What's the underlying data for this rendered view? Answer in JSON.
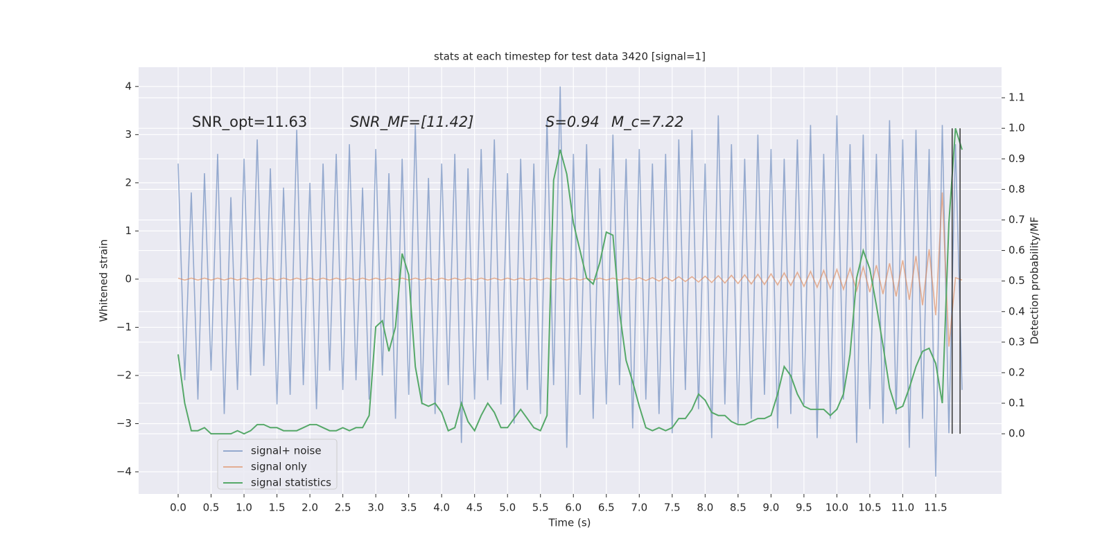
{
  "chart_data": {
    "type": "line",
    "title": "stats at each timestep for test data 3420 [signal=1]",
    "xlabel": "Time (s)",
    "ylabel": "Whitened strain",
    "y2label": "Detection probability/MF",
    "annotations": [
      "SNR_opt=11.63",
      "SNR_MF=[11.42]",
      "S=0.94",
      "M_c=7.22"
    ],
    "grid": true,
    "legend": "lower left",
    "xlim": [
      -0.6,
      12.5
    ],
    "ylim": [
      -4.46,
      4.4
    ],
    "y2lim": [
      -0.197,
      1.2
    ],
    "xticks": [
      {
        "value": 0,
        "label": "0.0"
      },
      0.5,
      {
        "value": 1,
        "label": "1.0"
      },
      1.5,
      {
        "value": 2,
        "label": "2.0"
      },
      2.5,
      {
        "value": 3,
        "label": "3.0"
      },
      3.5,
      {
        "value": 4,
        "label": "4.0"
      },
      4.5,
      {
        "value": 5,
        "label": "5.0"
      },
      5.5,
      {
        "value": 6,
        "label": "6.0"
      },
      6.5,
      {
        "value": 7,
        "label": "7.0"
      },
      7.5,
      {
        "value": 8,
        "label": "8.0"
      },
      8.5,
      {
        "value": 9,
        "label": "9.0"
      },
      9.5,
      {
        "value": 10,
        "label": "10.0"
      },
      10.5,
      {
        "value": 11,
        "label": "11.0"
      },
      11.5
    ],
    "yticks": [
      {
        "value": -4,
        "label": "−4"
      },
      {
        "value": -3,
        "label": "−3"
      },
      {
        "value": -2,
        "label": "−2"
      },
      {
        "value": -1,
        "label": "−1"
      },
      0,
      1,
      2,
      3,
      4
    ],
    "y2ticks": [
      {
        "value": 0,
        "label": "0.0"
      },
      0.1,
      0.2,
      0.3,
      0.4,
      0.5,
      0.6,
      0.7,
      0.8,
      0.9,
      {
        "value": 1,
        "label": "1.0"
      },
      1.1
    ],
    "vlines": [
      11.75,
      11.87
    ],
    "x": [
      0,
      0.1,
      0.2,
      0.3,
      0.4,
      0.5,
      0.6,
      0.7,
      0.8,
      0.9,
      1,
      1.1,
      1.2,
      1.3,
      1.4,
      1.5,
      1.6,
      1.7,
      1.8,
      1.9,
      2,
      2.1,
      2.2,
      2.3,
      2.4,
      2.5,
      2.6,
      2.7,
      2.8,
      2.9,
      3,
      3.1,
      3.2,
      3.3,
      3.4,
      3.5,
      3.6,
      3.7,
      3.8,
      3.9,
      4,
      4.1,
      4.2,
      4.3,
      4.4,
      4.5,
      4.6,
      4.7,
      4.8,
      4.9,
      5,
      5.1,
      5.2,
      5.3,
      5.4,
      5.5,
      5.6,
      5.7,
      5.8,
      5.9,
      6,
      6.1,
      6.2,
      6.3,
      6.4,
      6.5,
      6.6,
      6.7,
      6.8,
      6.9,
      7,
      7.1,
      7.2,
      7.3,
      7.4,
      7.5,
      7.6,
      7.7,
      7.8,
      7.9,
      8,
      8.1,
      8.2,
      8.3,
      8.4,
      8.5,
      8.6,
      8.7,
      8.8,
      8.9,
      9,
      9.1,
      9.2,
      9.3,
      9.4,
      9.5,
      9.6,
      9.7,
      9.8,
      9.9,
      10,
      10.1,
      10.2,
      10.3,
      10.4,
      10.5,
      10.6,
      10.7,
      10.8,
      10.9,
      11,
      11.1,
      11.2,
      11.3,
      11.4,
      11.5,
      11.6,
      11.7,
      11.8,
      11.9
    ],
    "series": [
      {
        "name": "signal+ noise",
        "color": "#4c72b0",
        "opacity": 0.55,
        "values": [
          2.4,
          -2.1,
          1.8,
          -2.5,
          2.2,
          -1.9,
          2.6,
          -2.8,
          1.7,
          -2.3,
          2.5,
          -2.0,
          2.9,
          -1.8,
          2.3,
          -2.6,
          1.9,
          -2.4,
          3.1,
          -2.2,
          2.0,
          -2.7,
          2.4,
          -1.9,
          2.6,
          -2.3,
          2.8,
          -2.1,
          1.9,
          -2.5,
          2.7,
          -2.0,
          2.2,
          -2.9,
          2.5,
          -2.4,
          3.2,
          -2.6,
          2.1,
          -2.8,
          2.4,
          -2.2,
          2.6,
          -3.4,
          2.3,
          -2.5,
          2.7,
          -2.1,
          2.9,
          -2.6,
          2.2,
          -3.0,
          2.5,
          -2.3,
          2.4,
          -2.8,
          3.3,
          -2.2,
          4.0,
          -3.5,
          2.6,
          -2.4,
          2.8,
          -2.9,
          2.3,
          -2.6,
          3.0,
          -2.2,
          2.5,
          -3.1,
          2.7,
          -2.5,
          2.4,
          -2.8,
          2.6,
          -3.2,
          2.9,
          -2.3,
          3.1,
          -2.7,
          2.4,
          -3.3,
          3.4,
          -2.6,
          2.8,
          -3.0,
          2.5,
          -2.9,
          3.0,
          -2.4,
          2.7,
          -3.1,
          2.5,
          -2.8,
          2.9,
          -2.6,
          3.2,
          -3.3,
          2.6,
          -2.9,
          3.4,
          -2.5,
          2.8,
          -3.4,
          3.0,
          -2.7,
          2.6,
          -3.0,
          3.3,
          -2.8,
          2.9,
          -3.5,
          3.1,
          -2.9,
          2.7,
          -4.1,
          3.2,
          -3.2,
          2.8,
          -2.3
        ]
      },
      {
        "name": "signal only",
        "color": "#dd8452",
        "opacity": 0.6,
        "values": [
          0.02,
          -0.02,
          0.02,
          -0.02,
          0.02,
          -0.02,
          0.02,
          -0.02,
          0.02,
          -0.02,
          0.02,
          -0.02,
          0.02,
          -0.02,
          0.02,
          -0.02,
          0.02,
          -0.02,
          0.02,
          -0.02,
          0.02,
          -0.02,
          0.02,
          -0.02,
          0.02,
          -0.02,
          0.02,
          -0.02,
          0.02,
          -0.02,
          0.02,
          -0.02,
          0.02,
          -0.02,
          0.02,
          -0.02,
          0.02,
          -0.02,
          0.02,
          -0.02,
          0.02,
          -0.02,
          0.02,
          -0.02,
          0.02,
          -0.02,
          0.02,
          -0.02,
          0.02,
          -0.02,
          0.02,
          -0.02,
          0.02,
          -0.02,
          0.02,
          -0.02,
          0.02,
          -0.02,
          0.02,
          -0.02,
          0.02,
          -0.02,
          0.02,
          -0.02,
          0.02,
          -0.02,
          0.02,
          -0.02,
          0.02,
          -0.02,
          0.03,
          -0.03,
          0.03,
          -0.04,
          0.04,
          -0.04,
          0.05,
          -0.05,
          0.05,
          -0.06,
          0.06,
          -0.07,
          0.07,
          -0.08,
          0.08,
          -0.09,
          0.09,
          -0.1,
          0.1,
          -0.11,
          0.11,
          -0.12,
          0.13,
          -0.13,
          0.14,
          -0.15,
          0.16,
          -0.17,
          0.18,
          -0.19,
          0.2,
          -0.21,
          0.22,
          -0.24,
          0.25,
          -0.27,
          0.29,
          -0.31,
          0.33,
          -0.36,
          0.39,
          -0.43,
          0.48,
          -0.54,
          0.62,
          -0.75,
          1.8,
          -1.4,
          0.03,
          -0.02
        ]
      },
      {
        "name": "signal statistics",
        "color": "#55a868",
        "opacity": 1,
        "axis": "y2",
        "values": [
          0.26,
          0.1,
          0.01,
          0.01,
          0.02,
          0.0,
          0.0,
          0.0,
          0.0,
          0.01,
          0.0,
          0.01,
          0.03,
          0.03,
          0.02,
          0.02,
          0.01,
          0.01,
          0.01,
          0.02,
          0.03,
          0.03,
          0.02,
          0.01,
          0.01,
          0.02,
          0.01,
          0.02,
          0.02,
          0.06,
          0.35,
          0.37,
          0.27,
          0.35,
          0.59,
          0.52,
          0.22,
          0.1,
          0.09,
          0.1,
          0.07,
          0.01,
          0.02,
          0.1,
          0.04,
          0.01,
          0.06,
          0.1,
          0.07,
          0.02,
          0.02,
          0.05,
          0.08,
          0.05,
          0.02,
          0.01,
          0.06,
          0.83,
          0.93,
          0.85,
          0.69,
          0.6,
          0.51,
          0.49,
          0.56,
          0.66,
          0.65,
          0.4,
          0.24,
          0.17,
          0.09,
          0.02,
          0.01,
          0.02,
          0.01,
          0.02,
          0.05,
          0.05,
          0.08,
          0.13,
          0.11,
          0.07,
          0.06,
          0.06,
          0.04,
          0.03,
          0.03,
          0.04,
          0.05,
          0.05,
          0.06,
          0.13,
          0.22,
          0.19,
          0.13,
          0.09,
          0.08,
          0.08,
          0.08,
          0.06,
          0.08,
          0.13,
          0.26,
          0.51,
          0.6,
          0.54,
          0.42,
          0.29,
          0.15,
          0.08,
          0.09,
          0.15,
          0.22,
          0.27,
          0.28,
          0.23,
          0.1,
          0.69,
          1.0,
          0.93
        ]
      }
    ]
  }
}
